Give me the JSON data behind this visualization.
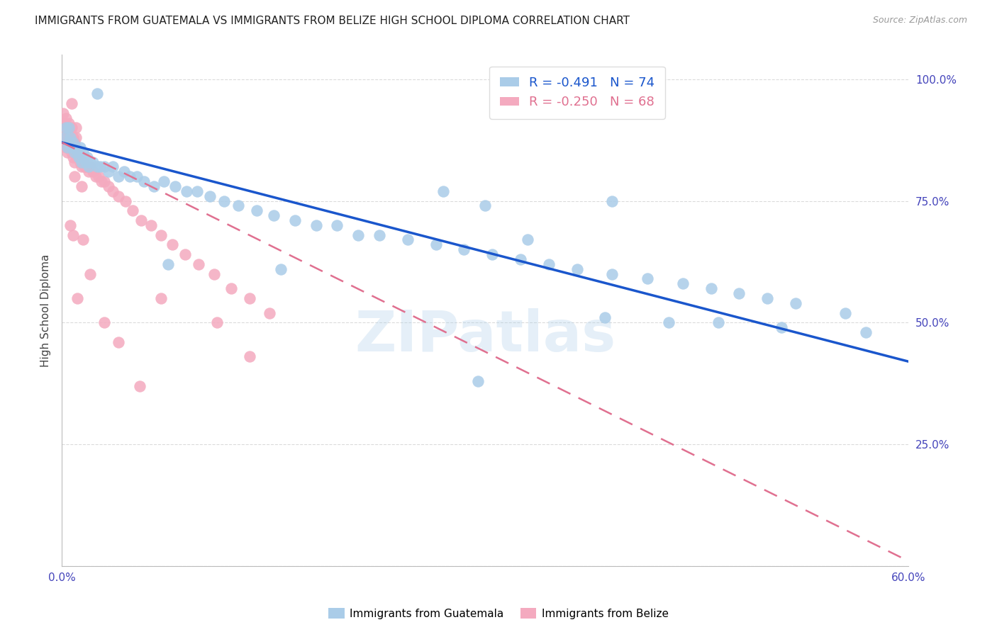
{
  "title": "IMMIGRANTS FROM GUATEMALA VS IMMIGRANTS FROM BELIZE HIGH SCHOOL DIPLOMA CORRELATION CHART",
  "source": "Source: ZipAtlas.com",
  "ylabel": "High School Diploma",
  "xlim": [
    0.0,
    0.6
  ],
  "ylim": [
    0.0,
    1.05
  ],
  "xticks": [
    0.0,
    0.1,
    0.2,
    0.3,
    0.4,
    0.5,
    0.6
  ],
  "xticklabels": [
    "0.0%",
    "",
    "",
    "",
    "",
    "",
    "60.0%"
  ],
  "yticks": [
    0.0,
    0.25,
    0.5,
    0.75,
    1.0
  ],
  "yticklabels": [
    "",
    "25.0%",
    "50.0%",
    "75.0%",
    "100.0%"
  ],
  "R_blue": -0.491,
  "N_blue": 74,
  "R_pink": -0.25,
  "N_pink": 68,
  "blue_color": "#aacce8",
  "pink_color": "#f4aabf",
  "blue_line_color": "#1a56cc",
  "pink_line_color": "#e07090",
  "watermark": "ZIPatlas",
  "title_fontsize": 11,
  "axis_label_fontsize": 11,
  "tick_fontsize": 11,
  "legend_fontsize": 13,
  "blue_line_x0": 0.0,
  "blue_line_y0": 0.87,
  "blue_line_x1": 0.6,
  "blue_line_y1": 0.42,
  "pink_line_x0": 0.0,
  "pink_line_y0": 0.87,
  "pink_line_x1": 0.6,
  "pink_line_y1": 0.01,
  "blue_x": [
    0.002,
    0.003,
    0.004,
    0.005,
    0.005,
    0.006,
    0.007,
    0.008,
    0.009,
    0.01,
    0.011,
    0.012,
    0.013,
    0.014,
    0.015,
    0.016,
    0.017,
    0.018,
    0.019,
    0.02,
    0.022,
    0.025,
    0.027,
    0.03,
    0.033,
    0.036,
    0.04,
    0.044,
    0.048,
    0.053,
    0.058,
    0.065,
    0.072,
    0.08,
    0.088,
    0.096,
    0.105,
    0.115,
    0.125,
    0.138,
    0.15,
    0.165,
    0.18,
    0.195,
    0.21,
    0.225,
    0.245,
    0.265,
    0.285,
    0.305,
    0.325,
    0.345,
    0.365,
    0.39,
    0.415,
    0.44,
    0.46,
    0.48,
    0.5,
    0.52,
    0.27,
    0.3,
    0.33,
    0.385,
    0.43,
    0.465,
    0.51,
    0.39,
    0.555,
    0.295,
    0.155,
    0.075,
    0.025,
    0.57
  ],
  "blue_y": [
    0.88,
    0.9,
    0.86,
    0.9,
    0.87,
    0.88,
    0.86,
    0.87,
    0.85,
    0.86,
    0.85,
    0.84,
    0.86,
    0.83,
    0.85,
    0.84,
    0.83,
    0.84,
    0.82,
    0.83,
    0.83,
    0.82,
    0.82,
    0.82,
    0.81,
    0.82,
    0.8,
    0.81,
    0.8,
    0.8,
    0.79,
    0.78,
    0.79,
    0.78,
    0.77,
    0.77,
    0.76,
    0.75,
    0.74,
    0.73,
    0.72,
    0.71,
    0.7,
    0.7,
    0.68,
    0.68,
    0.67,
    0.66,
    0.65,
    0.64,
    0.63,
    0.62,
    0.61,
    0.6,
    0.59,
    0.58,
    0.57,
    0.56,
    0.55,
    0.54,
    0.77,
    0.74,
    0.67,
    0.51,
    0.5,
    0.5,
    0.49,
    0.75,
    0.52,
    0.38,
    0.61,
    0.62,
    0.97,
    0.48
  ],
  "pink_x": [
    0.001,
    0.001,
    0.002,
    0.002,
    0.003,
    0.003,
    0.004,
    0.004,
    0.005,
    0.005,
    0.006,
    0.006,
    0.007,
    0.007,
    0.008,
    0.008,
    0.009,
    0.009,
    0.01,
    0.01,
    0.011,
    0.012,
    0.013,
    0.014,
    0.015,
    0.016,
    0.017,
    0.018,
    0.019,
    0.02,
    0.022,
    0.024,
    0.026,
    0.028,
    0.03,
    0.033,
    0.036,
    0.04,
    0.045,
    0.05,
    0.056,
    0.063,
    0.07,
    0.078,
    0.087,
    0.097,
    0.108,
    0.12,
    0.133,
    0.147,
    0.003,
    0.005,
    0.007,
    0.009,
    0.01,
    0.012,
    0.014,
    0.006,
    0.008,
    0.011,
    0.015,
    0.02,
    0.03,
    0.04,
    0.055,
    0.07,
    0.11,
    0.133
  ],
  "pink_y": [
    0.93,
    0.87,
    0.91,
    0.88,
    0.9,
    0.86,
    0.89,
    0.85,
    0.91,
    0.87,
    0.89,
    0.86,
    0.9,
    0.85,
    0.88,
    0.84,
    0.87,
    0.83,
    0.88,
    0.85,
    0.84,
    0.84,
    0.83,
    0.82,
    0.83,
    0.82,
    0.82,
    0.82,
    0.81,
    0.82,
    0.81,
    0.8,
    0.8,
    0.79,
    0.79,
    0.78,
    0.77,
    0.76,
    0.75,
    0.73,
    0.71,
    0.7,
    0.68,
    0.66,
    0.64,
    0.62,
    0.6,
    0.57,
    0.55,
    0.52,
    0.92,
    0.86,
    0.95,
    0.8,
    0.9,
    0.84,
    0.78,
    0.7,
    0.68,
    0.55,
    0.67,
    0.6,
    0.5,
    0.46,
    0.37,
    0.55,
    0.5,
    0.43
  ]
}
